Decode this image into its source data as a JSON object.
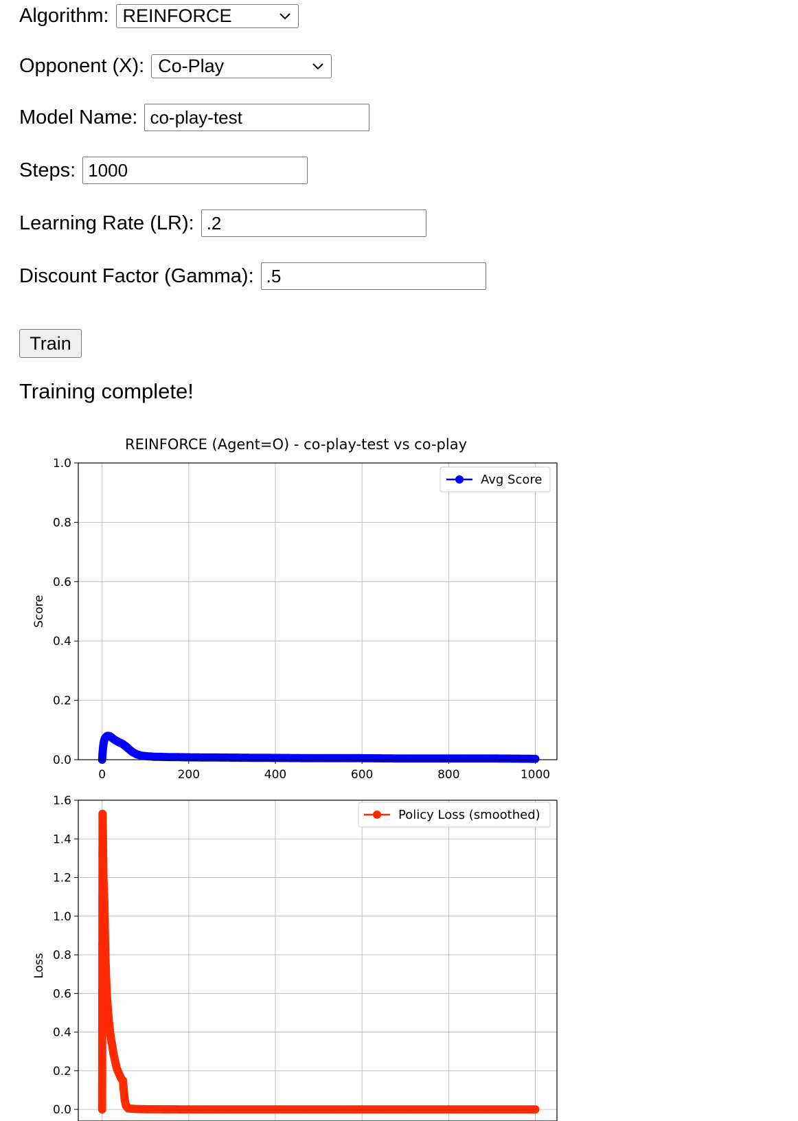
{
  "form": {
    "algorithm": {
      "label": "Algorithm:",
      "value": "REINFORCE"
    },
    "opponent": {
      "label": "Opponent (X):",
      "value": "Co-Play"
    },
    "model_name": {
      "label": "Model Name:",
      "value": "co-play-test"
    },
    "steps": {
      "label": "Steps:",
      "value": "1000"
    },
    "learning_rate": {
      "label": "Learning Rate (LR):",
      "value": ".2"
    },
    "gamma": {
      "label": "Discount Factor (Gamma):",
      "value": ".5"
    }
  },
  "train_button": {
    "label": "Train"
  },
  "status": {
    "text": "Training complete!"
  },
  "chart_data": [
    {
      "type": "line",
      "title": "REINFORCE (Agent=O) - co-play-test vs co-play",
      "ylabel": "Score",
      "xlabel": "",
      "xlim": [
        -55,
        1050
      ],
      "ylim": [
        0,
        1.0
      ],
      "xticks": [
        0,
        200,
        400,
        600,
        800,
        1000
      ],
      "yticks": [
        0.0,
        0.2,
        0.4,
        0.6,
        0.8,
        1.0
      ],
      "grid": true,
      "legend": "top-right",
      "series": [
        {
          "name": "Avg Score",
          "color": "#0000ff",
          "marker": "circle",
          "points": [
            [
              0,
              0
            ],
            [
              2,
              0.04
            ],
            [
              4,
              0.06
            ],
            [
              6,
              0.07
            ],
            [
              8,
              0.075
            ],
            [
              10,
              0.078
            ],
            [
              12,
              0.08
            ],
            [
              15,
              0.08
            ],
            [
              18,
              0.079
            ],
            [
              22,
              0.075
            ],
            [
              26,
              0.07
            ],
            [
              30,
              0.066
            ],
            [
              35,
              0.062
            ],
            [
              40,
              0.058
            ],
            [
              45,
              0.055
            ],
            [
              50,
              0.05
            ],
            [
              55,
              0.045
            ],
            [
              60,
              0.038
            ],
            [
              65,
              0.032
            ],
            [
              70,
              0.026
            ],
            [
              75,
              0.022
            ],
            [
              80,
              0.018
            ],
            [
              90,
              0.014
            ],
            [
              100,
              0.012
            ],
            [
              120,
              0.01
            ],
            [
              150,
              0.009
            ],
            [
              200,
              0.008
            ],
            [
              300,
              0.007
            ],
            [
              400,
              0.006
            ],
            [
              500,
              0.005
            ],
            [
              600,
              0.005
            ],
            [
              700,
              0.004
            ],
            [
              800,
              0.004
            ],
            [
              900,
              0.004
            ],
            [
              1000,
              0.003
            ]
          ]
        }
      ]
    },
    {
      "type": "line",
      "title": "",
      "ylabel": "Loss",
      "xlabel": "",
      "xlim": [
        -55,
        1050
      ],
      "ylim": [
        -0.06,
        1.6
      ],
      "xticks": [
        0,
        200,
        400,
        600,
        800,
        1000
      ],
      "yticks": [
        0.0,
        0.2,
        0.4,
        0.6,
        0.8,
        1.0,
        1.2,
        1.4,
        1.6
      ],
      "grid": true,
      "legend": "top-right",
      "series": [
        {
          "name": "Policy Loss (smoothed)",
          "color": "#ff2a00",
          "marker": "circle",
          "points": [
            [
              0,
              0
            ],
            [
              1,
              1.53
            ],
            [
              2,
              1.4
            ],
            [
              3,
              1.2
            ],
            [
              4,
              1.15
            ],
            [
              5,
              1.09
            ],
            [
              6,
              0.97
            ],
            [
              7,
              0.86
            ],
            [
              8,
              0.77
            ],
            [
              9,
              0.7
            ],
            [
              10,
              0.64
            ],
            [
              11,
              0.6
            ],
            [
              12,
              0.56
            ],
            [
              13,
              0.53
            ],
            [
              14,
              0.5
            ],
            [
              15,
              0.47
            ],
            [
              17,
              0.43
            ],
            [
              19,
              0.39
            ],
            [
              21,
              0.36
            ],
            [
              24,
              0.32
            ],
            [
              27,
              0.28
            ],
            [
              30,
              0.25
            ],
            [
              33,
              0.22
            ],
            [
              36,
              0.2
            ],
            [
              40,
              0.18
            ],
            [
              44,
              0.16
            ],
            [
              48,
              0.15
            ],
            [
              50,
              0.1
            ],
            [
              52,
              0.05
            ],
            [
              55,
              0.02
            ],
            [
              60,
              0.005
            ],
            [
              80,
              0.002
            ],
            [
              100,
              0.001
            ],
            [
              200,
              0
            ],
            [
              300,
              0
            ],
            [
              400,
              0
            ],
            [
              500,
              0
            ],
            [
              600,
              0
            ],
            [
              700,
              0
            ],
            [
              800,
              0
            ],
            [
              900,
              0
            ],
            [
              1000,
              0
            ]
          ]
        }
      ]
    }
  ]
}
